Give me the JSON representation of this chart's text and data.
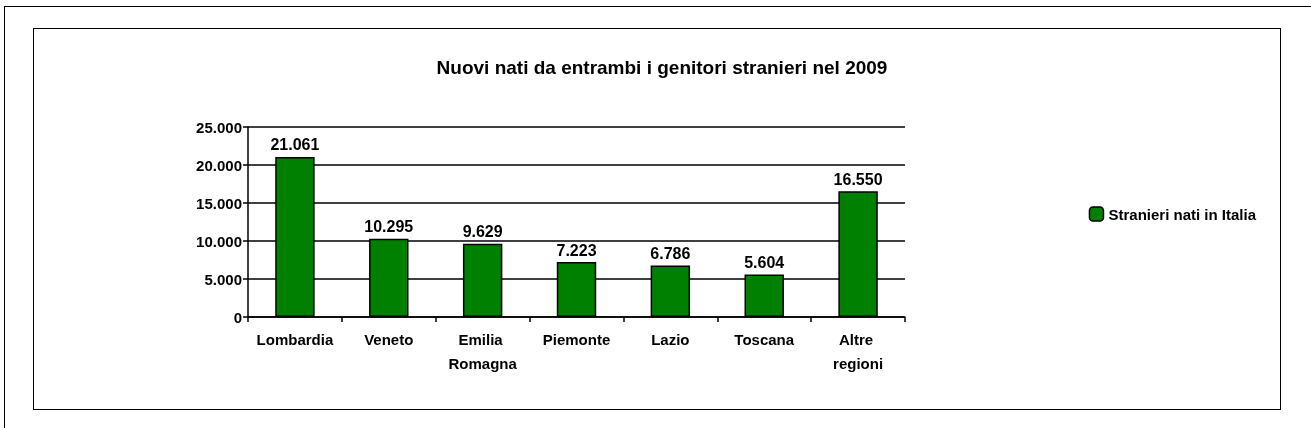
{
  "chart_data": {
    "type": "bar",
    "title": "Nuovi nati da entrambi i genitori stranieri nel 2009",
    "categories": [
      "Lombardia",
      "Veneto",
      "Emilia Romagna",
      "Piemonte",
      "Lazio",
      "Toscana",
      "Altre regioni"
    ],
    "series": [
      {
        "name": "Stranieri nati in Italia",
        "color": "#008000",
        "values": [
          21061,
          10295,
          9629,
          7223,
          6786,
          5604,
          16550
        ],
        "value_labels": [
          "21.061",
          "10.295",
          "9.629",
          "7.223",
          "6.786",
          "5.604",
          "16.550"
        ]
      }
    ],
    "ylim": [
      0,
      25000
    ],
    "yticks": [
      0,
      {
        "value": 5000,
        "label": "5.000"
      },
      {
        "value": 10000,
        "label": "10.000"
      },
      {
        "value": 15000,
        "label": "15.000"
      },
      {
        "value": 20000,
        "label": "20.000"
      },
      {
        "value": 25000,
        "label": "25.000"
      }
    ],
    "grid": "y",
    "legend": "right"
  }
}
